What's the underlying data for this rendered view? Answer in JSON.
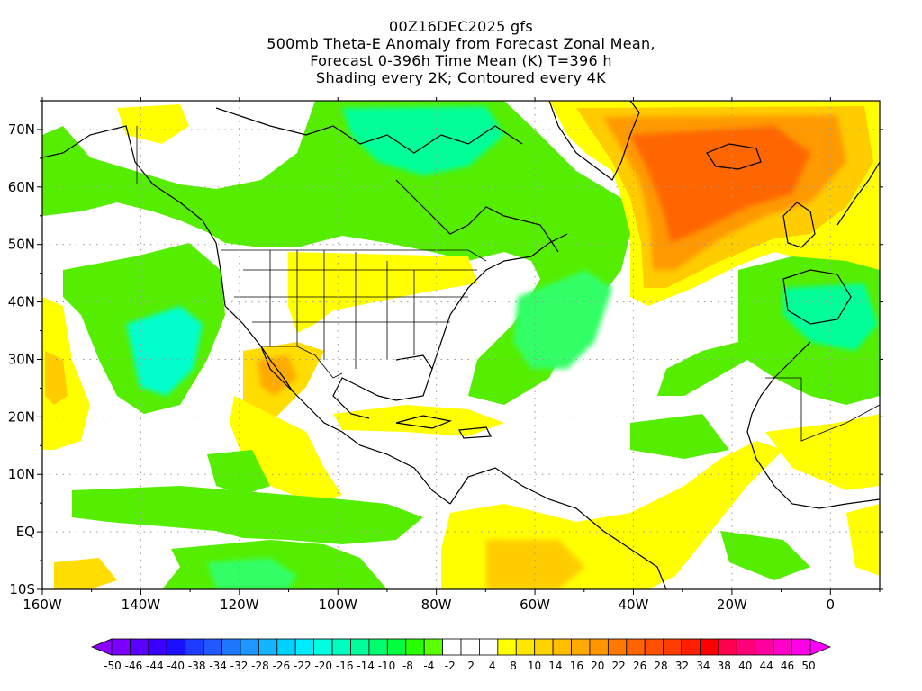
{
  "title": {
    "line1": "00Z16DEC2025 gfs",
    "line2": "500mb Theta-E Anomaly from Forecast Zonal Mean,",
    "line3": "Forecast 0-396h Time Mean (K) T=396 h",
    "line4": "Shading every 2K; Contoured every 4K"
  },
  "map": {
    "lon_range": [
      -160,
      10
    ],
    "lat_range": [
      -10,
      75
    ],
    "x_ticks": [
      "160W",
      "140W",
      "120W",
      "100W",
      "80W",
      "60W",
      "40W",
      "20W",
      "0"
    ],
    "y_ticks": [
      "10S",
      "EQ",
      "10N",
      "20N",
      "30N",
      "40N",
      "50N",
      "60N",
      "70N"
    ],
    "grid": "dotted"
  },
  "colorbar": {
    "labels": [
      "-50",
      "-46",
      "-44",
      "-40",
      "-38",
      "-34",
      "-32",
      "-28",
      "-26",
      "-22",
      "-20",
      "-16",
      "-14",
      "-10",
      "-8",
      "-4",
      "-2",
      "2",
      "4",
      "8",
      "10",
      "14",
      "16",
      "20",
      "22",
      "26",
      "28",
      "32",
      "34",
      "38",
      "40",
      "44",
      "46",
      "50"
    ],
    "colors": [
      "#8b00ff",
      "#7a00ff",
      "#5a00ff",
      "#3a00ff",
      "#1a10ff",
      "#1e3cff",
      "#1e5aff",
      "#1e78ff",
      "#1e96ff",
      "#14b4ff",
      "#00d2ff",
      "#00ebff",
      "#00ffe0",
      "#00ffbe",
      "#00ff9a",
      "#00ff6e",
      "#00ff3c",
      "#28ff00",
      "#5aff00",
      "#ffffff",
      "#ffffff",
      "#ffffff",
      "#ffff00",
      "#ffe600",
      "#ffd200",
      "#ffbe00",
      "#ffaa00",
      "#ff9600",
      "#ff7800",
      "#ff6400",
      "#ff5000",
      "#ff3c00",
      "#ff1e00",
      "#ff0000",
      "#ff0050",
      "#ff0078",
      "#ff00a0",
      "#ff00c8",
      "#ff00e6",
      "#ff00ff"
    ]
  }
}
